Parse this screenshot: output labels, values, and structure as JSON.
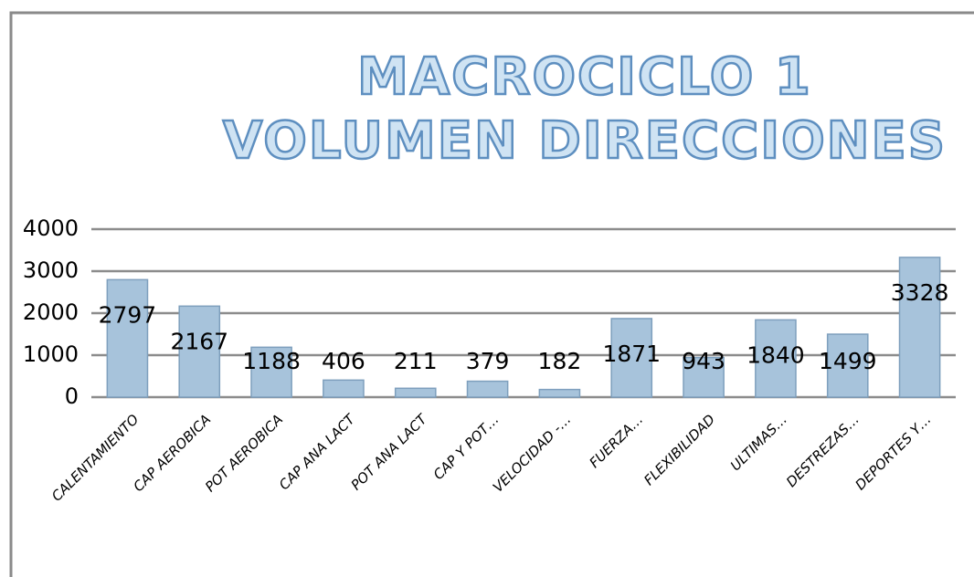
{
  "chart_data": {
    "type": "bar",
    "title": [
      "MACROCICLO 1",
      "VOLUMEN DIRECCIONES"
    ],
    "categories": [
      "CALENTAMIENTO",
      "CAP AEROBICA",
      "POT AEROBICA",
      "CAP ANA LACT",
      "POT ANA LACT",
      "CAP Y POT…",
      "VELOCIDAD -…",
      "FUERZA…",
      "FLEXIBILIDAD",
      "ULTIMAS…",
      "DESTREZAS…",
      "DEPORTES Y…"
    ],
    "values": [
      2797,
      2167,
      1188,
      406,
      211,
      379,
      182,
      1871,
      943,
      1840,
      1499,
      3328
    ],
    "color": "#a7c3db",
    "ylim": [
      0,
      4000
    ],
    "yticks": [
      0,
      1000,
      2000,
      3000,
      4000
    ],
    "grid": true
  }
}
